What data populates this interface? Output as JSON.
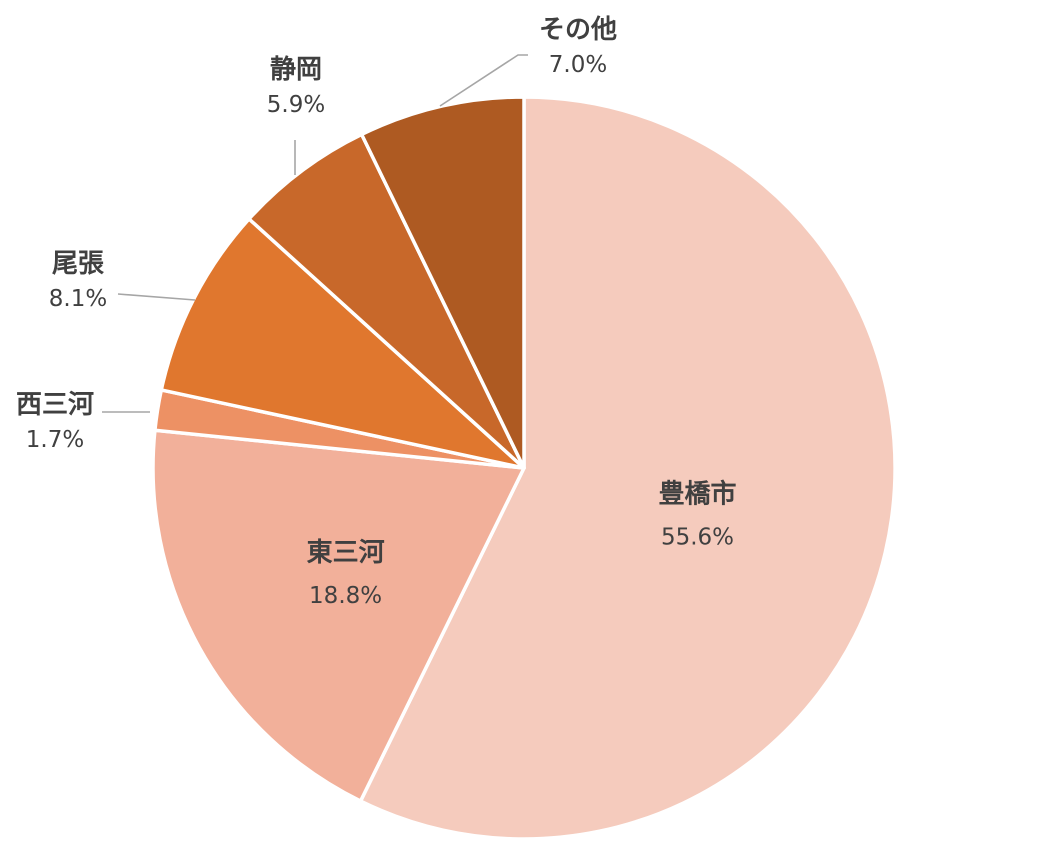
{
  "chart_data": {
    "type": "pie",
    "start_angle_deg": 0,
    "direction": "clockwise",
    "slices": [
      {
        "label": "豊橋市",
        "value": 55.6,
        "value_label": "55.6%",
        "color": "#f5cbbd",
        "label_position": "inside"
      },
      {
        "label": "東三河",
        "value": 18.8,
        "value_label": "18.8%",
        "color": "#f2b09a",
        "label_position": "inside"
      },
      {
        "label": "西三河",
        "value": 1.7,
        "value_label": "1.7%",
        "color": "#ed9164",
        "label_position": "outside"
      },
      {
        "label": "尾張",
        "value": 8.1,
        "value_label": "8.1%",
        "color": "#e0772e",
        "label_position": "outside"
      },
      {
        "label": "静岡",
        "value": 5.9,
        "value_label": "5.9%",
        "color": "#c8682a",
        "label_position": "outside"
      },
      {
        "label": "その他",
        "value": 7.0,
        "value_label": "7.0%",
        "color": "#ae5a22",
        "label_position": "outside"
      }
    ]
  }
}
